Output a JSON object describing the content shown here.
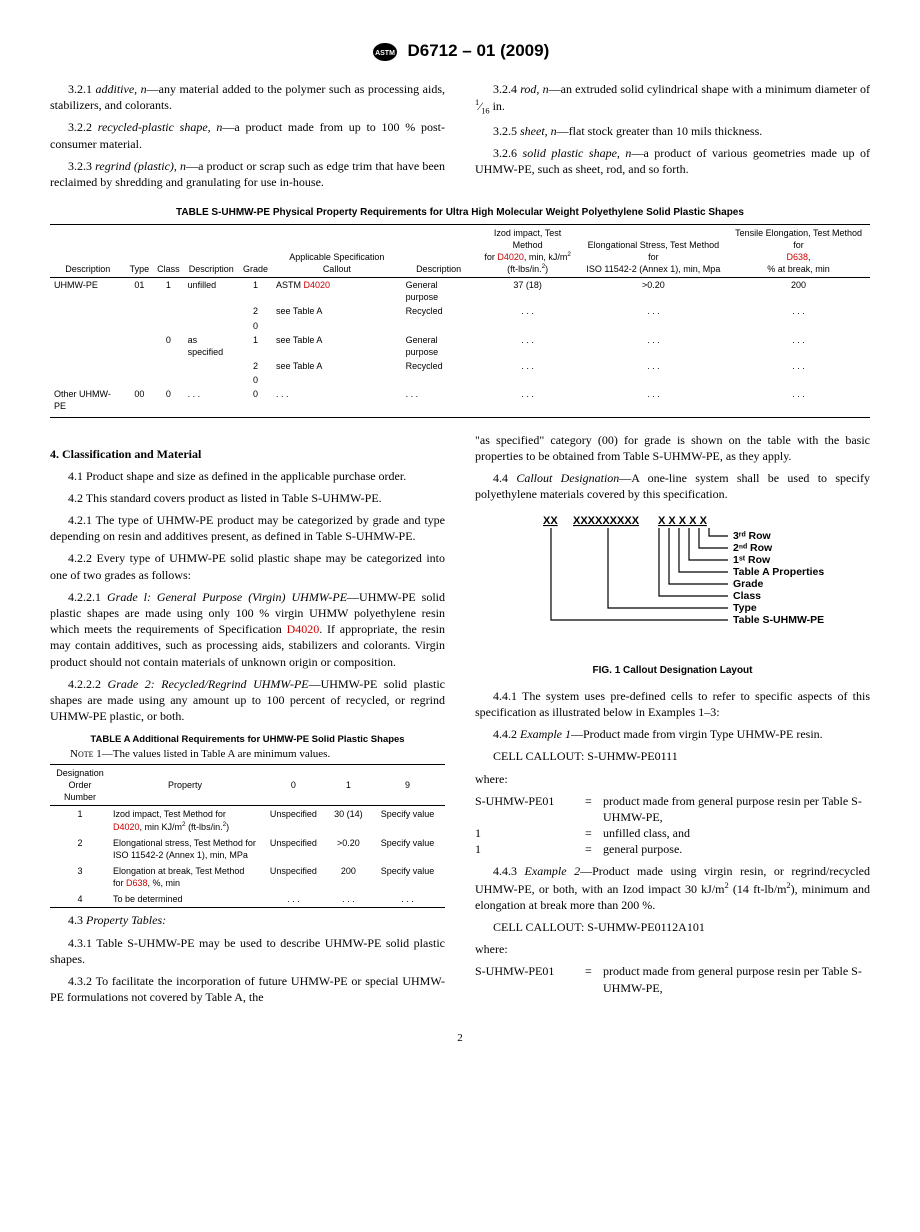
{
  "header_designation": "D6712 – 01 (2009)",
  "defs": {
    "d321_num": "3.2.1",
    "d321_term": "additive, n",
    "d321_body": "—any material added to the polymer such as processing aids, stabilizers, and colorants.",
    "d322_num": "3.2.2",
    "d322_term": "recycled-plastic shape, n",
    "d322_body": "—a product made from up to 100 % post-consumer material.",
    "d323_num": "3.2.3",
    "d323_term": "regrind (plastic), n",
    "d323_body": "—a product or scrap such as edge trim that have been reclaimed by shredding and granulating for use in-house.",
    "d324_num": "3.2.4",
    "d324_term": "rod, n",
    "d324_body_a": "—an extruded solid cylindrical shape with a minimum diameter of ",
    "d324_frac_num": "1",
    "d324_frac_den": "16",
    "d324_body_b": " in.",
    "d325_num": "3.2.5",
    "d325_term": "sheet, n",
    "d325_body": "—flat stock greater than 10 mils thickness.",
    "d326_num": "3.2.6",
    "d326_term": "solid plastic shape, n",
    "d326_body": "—a product of various geometries made up of UHMW-PE, such as sheet, rod, and so forth."
  },
  "tableS": {
    "title": "TABLE S-UHMW-PE Physical Property Requirements for Ultra High Molecular Weight Polyethylene Solid Plastic Shapes",
    "headers": {
      "h1": "Description",
      "h2": "Type",
      "h3": "Class",
      "h4": "Description",
      "h5": "Grade",
      "h6": "Applicable Specification Callout",
      "h7": "Description",
      "h8a": "Izod impact, Test Method",
      "h8b": "for ",
      "h8link": "D4020",
      "h8c": ", min, kJ/m",
      "h8sup": "2",
      "h8d": "(ft-lbs/in.",
      "h8sup2": "2",
      "h8e": ")",
      "h9a": "Elongational Stress, Test Method for",
      "h9b": "ISO 11542-2 (Annex 1), min, Mpa",
      "h10a": "Tensile Elongation, Test Method for",
      "h10link": "D638",
      "h10b": ",",
      "h10c": "% at break, min"
    },
    "rows": [
      {
        "c1": "UHMW-PE",
        "c2": "01",
        "c3": "1",
        "c4": "unfilled",
        "c5": "1",
        "c6": "ASTM ",
        "c6link": "D4020",
        "c7": "General purpose",
        "c8": "37 (18)",
        "c9": ">0.20",
        "c10": "200"
      },
      {
        "c1": "",
        "c2": "",
        "c3": "",
        "c4": "",
        "c5": "2",
        "c6": "see Table A",
        "c6link": "",
        "c7": "Recycled",
        "c8": ". . .",
        "c9": ". . .",
        "c10": ". . ."
      },
      {
        "c1": "",
        "c2": "",
        "c3": "",
        "c4": "",
        "c5": "0",
        "c6": "",
        "c6link": "",
        "c7": "",
        "c8": "",
        "c9": "",
        "c10": ""
      },
      {
        "c1": "",
        "c2": "",
        "c3": "0",
        "c4": "as specified",
        "c5": "1",
        "c6": "see Table A",
        "c6link": "",
        "c7": "General purpose",
        "c8": ". . .",
        "c9": ". . .",
        "c10": ". . ."
      },
      {
        "c1": "",
        "c2": "",
        "c3": "",
        "c4": "",
        "c5": "2",
        "c6": "see Table A",
        "c6link": "",
        "c7": "Recycled",
        "c8": ". . .",
        "c9": ". . .",
        "c10": ". . ."
      },
      {
        "c1": "",
        "c2": "",
        "c3": "",
        "c4": "",
        "c5": "0",
        "c6": "",
        "c6link": "",
        "c7": "",
        "c8": "",
        "c9": "",
        "c10": ""
      },
      {
        "c1": "Other UHMW-PE",
        "c2": "00",
        "c3": "0",
        "c4": ". . .",
        "c5": "0",
        "c6": ". . .",
        "c6link": "",
        "c7": ". . .",
        "c8": ". . .",
        "c9": ". . .",
        "c10": ". . ."
      }
    ]
  },
  "section4_title": "4. Classification and Material",
  "p41": "4.1 Product shape and size as defined in the applicable purchase order.",
  "p42": "4.2 This standard covers product as listed in Table S-UHMW-PE.",
  "p421": "4.2.1 The type of UHMW-PE product may be categorized by grade and type depending on resin and additives present, as defined in Table S-UHMW-PE.",
  "p422": "4.2.2 Every type of UHMW-PE solid plastic shape may be categorized into one of two grades as follows:",
  "p4221_a": "4.2.2.1 ",
  "p4221_term": "Grade l: General Purpose (Virgin) UHMW-PE",
  "p4221_b": "—UHMW-PE solid plastic shapes are made using only 100 % virgin UHMW polyethylene resin which meets the requirements of Specification ",
  "p4221_link": "D4020",
  "p4221_c": ". If appropriate, the resin may contain additives, such as processing aids, stabilizers and colorants. Virgin product should not contain materials of unknown origin or composition.",
  "p4222_a": "4.2.2.2 ",
  "p4222_term": "Grade 2: Recycled/Regrind UHMW-PE",
  "p4222_b": "—UHMW-PE solid plastic shapes are made using any amount up to 100 percent of recycled, or regrind UHMW-PE plastic, or both.",
  "tableA": {
    "title": "TABLE A   Additional Requirements for UHMW-PE Solid Plastic Shapes",
    "note_label": "Note 1",
    "note_body": "—The values listed in Table A are minimum values.",
    "h1": "Designation Order Number",
    "h2": "Property",
    "h3": "0",
    "h4": "1",
    "h5": "9",
    "rows": [
      {
        "c1": "1",
        "c2a": "Izod impact, Test Method for ",
        "c2link": "D4020",
        "c2b": ", min KJ/m",
        "c2sup": "2",
        "c2c": " (ft-lbs/in.",
        "c2sup2": "2",
        "c2d": ")",
        "c3": "Unspecified",
        "c4": "30 (14)",
        "c5": "Specify value"
      },
      {
        "c1": "2",
        "c2a": "Elongational stress, Test Method for ISO 11542-2 (Annex 1), min, MPa",
        "c2link": "",
        "c2b": "",
        "c2sup": "",
        "c2c": "",
        "c2sup2": "",
        "c2d": "",
        "c3": "Unspecified",
        "c4": ">0.20",
        "c5": "Specify value"
      },
      {
        "c1": "3",
        "c2a": "Elongation at break, Test Method for ",
        "c2link": "D638",
        "c2b": ", %, min",
        "c2sup": "",
        "c2c": "",
        "c2sup2": "",
        "c2d": "",
        "c3": "Unspecified",
        "c4": "200",
        "c5": "Specify value"
      },
      {
        "c1": "4",
        "c2a": "To be determined",
        "c2link": "",
        "c2b": "",
        "c2sup": "",
        "c2c": "",
        "c2sup2": "",
        "c2d": "",
        "c3": ". . .",
        "c4": ". . .",
        "c5": ". . ."
      }
    ]
  },
  "p43_head": "4.3 ",
  "p43_term": "Property Tables:",
  "p431": "4.3.1 Table S-UHMW-PE may be used to describe UHMW-PE solid plastic shapes.",
  "p432": "4.3.2 To facilitate the incorporation of future UHMW-PE or special UHMW-PE formulations not covered by Table A, the",
  "rcol_top": "\"as specified\" category (00) for grade is shown on the table with the basic properties to be obtained from Table S-UHMW-PE, as they apply.",
  "p44_a": "4.4 ",
  "p44_term": "Callout Designation",
  "p44_b": "—A one-line system shall be used to specify polyethylene materials covered by this specification.",
  "fig": {
    "top_xx1": "XX",
    "top_xx2": "XXXXXXXXX",
    "top_xx3": "X X X X X",
    "l1": "3ʳᵈ Row",
    "l2": "2ⁿᵈ Row",
    "l3": "1ˢᵗ Row",
    "l4": "Table A Properties",
    "l5": "Grade",
    "l6": "Class",
    "l7": "Type",
    "l8": "Table S-UHMW-PE",
    "caption": "FIG. 1 Callout Designation Layout"
  },
  "p441": "4.4.1 The system uses pre-defined cells to refer to specific aspects of this specification as illustrated below in Examples 1–3:",
  "p442_a": "4.4.2 ",
  "p442_term": "Example 1",
  "p442_b": "—Product made from virgin Type UHMW-PE resin.",
  "p442_callout": "CELL CALLOUT: S-UHMW-PE0111",
  "where_label": "where:",
  "where1": {
    "k": "S-UHMW-PE01",
    "eq": "=",
    "v": "product made from general purpose resin per Table S-UHMW-PE,"
  },
  "where2": {
    "k": "1",
    "eq": "=",
    "v": "unfilled class, and"
  },
  "where3": {
    "k": "1",
    "eq": "=",
    "v": "general purpose."
  },
  "p443_a": "4.4.3 ",
  "p443_term": "Example 2",
  "p443_b_1": "—Product made using virgin resin, or regrind/recycled UHMW-PE, or both, with an Izod impact 30 kJ/m",
  "p443_sup1": "2",
  "p443_b_2": " (14 ft-lb/m",
  "p443_sup2": "2",
  "p443_b_3": "), minimum and elongation at break more than 200 %.",
  "p443_callout": "CELL CALLOUT: S-UHMW-PE0112A101",
  "where4": {
    "k": "S-UHMW-PE01",
    "eq": "=",
    "v": "product made from general purpose resin per Table S-UHMW-PE,"
  },
  "pagenum": "2"
}
